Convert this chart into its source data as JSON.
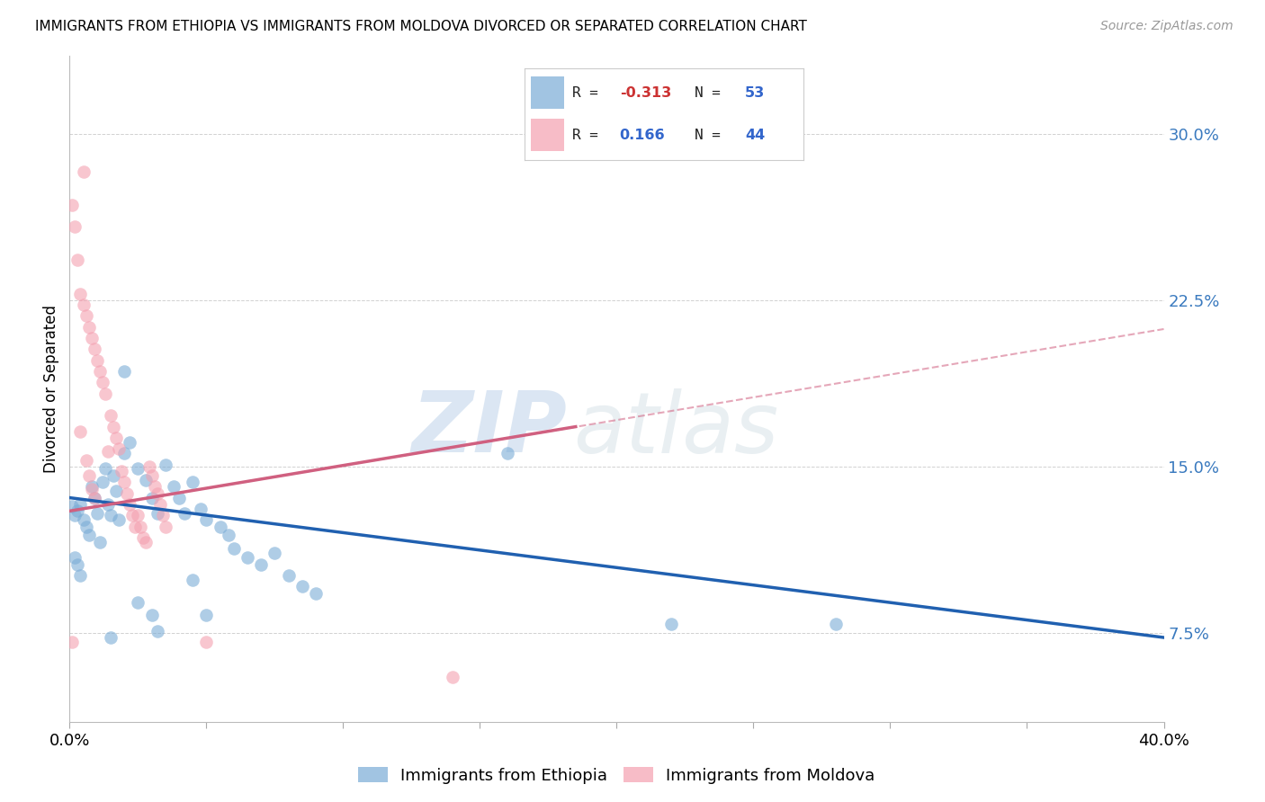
{
  "title": "IMMIGRANTS FROM ETHIOPIA VS IMMIGRANTS FROM MOLDOVA DIVORCED OR SEPARATED CORRELATION CHART",
  "source": "Source: ZipAtlas.com",
  "ylabel": "Divorced or Separated",
  "yticks": [
    "7.5%",
    "15.0%",
    "22.5%",
    "30.0%"
  ],
  "ytick_vals": [
    0.075,
    0.15,
    0.225,
    0.3
  ],
  "xlim": [
    0.0,
    0.4
  ],
  "ylim": [
    0.035,
    0.335
  ],
  "ethiopia_points": [
    [
      0.001,
      0.132
    ],
    [
      0.002,
      0.128
    ],
    [
      0.003,
      0.13
    ],
    [
      0.004,
      0.133
    ],
    [
      0.005,
      0.126
    ],
    [
      0.006,
      0.123
    ],
    [
      0.007,
      0.119
    ],
    [
      0.008,
      0.141
    ],
    [
      0.009,
      0.136
    ],
    [
      0.01,
      0.129
    ],
    [
      0.011,
      0.116
    ],
    [
      0.012,
      0.143
    ],
    [
      0.013,
      0.149
    ],
    [
      0.014,
      0.133
    ],
    [
      0.015,
      0.128
    ],
    [
      0.016,
      0.146
    ],
    [
      0.017,
      0.139
    ],
    [
      0.018,
      0.126
    ],
    [
      0.02,
      0.156
    ],
    [
      0.022,
      0.161
    ],
    [
      0.025,
      0.149
    ],
    [
      0.028,
      0.144
    ],
    [
      0.03,
      0.136
    ],
    [
      0.032,
      0.129
    ],
    [
      0.035,
      0.151
    ],
    [
      0.038,
      0.141
    ],
    [
      0.04,
      0.136
    ],
    [
      0.042,
      0.129
    ],
    [
      0.045,
      0.143
    ],
    [
      0.048,
      0.131
    ],
    [
      0.05,
      0.126
    ],
    [
      0.055,
      0.123
    ],
    [
      0.058,
      0.119
    ],
    [
      0.06,
      0.113
    ],
    [
      0.065,
      0.109
    ],
    [
      0.07,
      0.106
    ],
    [
      0.075,
      0.111
    ],
    [
      0.08,
      0.101
    ],
    [
      0.085,
      0.096
    ],
    [
      0.09,
      0.093
    ],
    [
      0.025,
      0.089
    ],
    [
      0.03,
      0.083
    ],
    [
      0.045,
      0.099
    ],
    [
      0.05,
      0.083
    ],
    [
      0.032,
      0.076
    ],
    [
      0.015,
      0.073
    ],
    [
      0.22,
      0.079
    ],
    [
      0.28,
      0.079
    ],
    [
      0.02,
      0.193
    ],
    [
      0.16,
      0.156
    ],
    [
      0.002,
      0.109
    ],
    [
      0.003,
      0.106
    ],
    [
      0.004,
      0.101
    ]
  ],
  "moldova_points": [
    [
      0.001,
      0.268
    ],
    [
      0.002,
      0.258
    ],
    [
      0.003,
      0.243
    ],
    [
      0.004,
      0.228
    ],
    [
      0.005,
      0.223
    ],
    [
      0.006,
      0.218
    ],
    [
      0.007,
      0.213
    ],
    [
      0.008,
      0.208
    ],
    [
      0.009,
      0.203
    ],
    [
      0.01,
      0.198
    ],
    [
      0.011,
      0.193
    ],
    [
      0.012,
      0.188
    ],
    [
      0.013,
      0.183
    ],
    [
      0.014,
      0.157
    ],
    [
      0.015,
      0.173
    ],
    [
      0.016,
      0.168
    ],
    [
      0.017,
      0.163
    ],
    [
      0.018,
      0.158
    ],
    [
      0.019,
      0.148
    ],
    [
      0.02,
      0.143
    ],
    [
      0.021,
      0.138
    ],
    [
      0.022,
      0.133
    ],
    [
      0.023,
      0.128
    ],
    [
      0.024,
      0.123
    ],
    [
      0.025,
      0.128
    ],
    [
      0.026,
      0.123
    ],
    [
      0.027,
      0.118
    ],
    [
      0.028,
      0.116
    ],
    [
      0.029,
      0.15
    ],
    [
      0.03,
      0.146
    ],
    [
      0.031,
      0.141
    ],
    [
      0.032,
      0.138
    ],
    [
      0.033,
      0.133
    ],
    [
      0.034,
      0.128
    ],
    [
      0.004,
      0.166
    ],
    [
      0.006,
      0.153
    ],
    [
      0.007,
      0.146
    ],
    [
      0.008,
      0.14
    ],
    [
      0.009,
      0.136
    ],
    [
      0.001,
      0.071
    ],
    [
      0.05,
      0.071
    ],
    [
      0.005,
      0.283
    ],
    [
      0.035,
      0.123
    ],
    [
      0.14,
      0.055
    ]
  ],
  "ethiopia_line": {
    "x0": 0.0,
    "y0": 0.136,
    "x1": 0.4,
    "y1": 0.073
  },
  "moldova_solid_line": {
    "x0": 0.0,
    "y0": 0.13,
    "x1": 0.185,
    "y1": 0.168
  },
  "moldova_dashed_line": {
    "x0": 0.0,
    "y0": 0.13,
    "x1": 0.4,
    "y1": 0.212
  },
  "ethiopia_color": "#7aacd6",
  "moldova_color": "#f4a0b0",
  "ethiopia_line_color": "#2060b0",
  "moldova_line_color": "#d06080",
  "watermark_zip": "ZIP",
  "watermark_atlas": "atlas",
  "background_color": "#ffffff",
  "grid_color": "#cccccc",
  "legend_box_color": "#7aacd6",
  "legend_box_color2": "#f4a0b0",
  "r1": "-0.313",
  "n1": "53",
  "r2": "0.166",
  "n2": "44"
}
